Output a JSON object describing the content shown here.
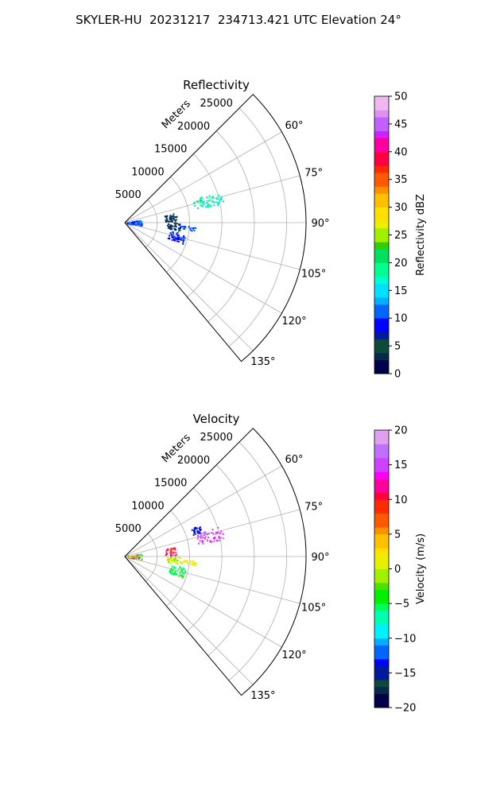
{
  "title": "SKYLER-HU  20231217  234713.421 UTC Elevation 24°",
  "colors": {
    "grid": "#b0b0b0",
    "axis": "#000000"
  },
  "chart_data": [
    {
      "type": "heatmap",
      "projection": "polar-sector",
      "title": "Reflectivity",
      "radial_label": "Meters",
      "radial_range": [
        0,
        28000
      ],
      "radial_ticks": [
        5000,
        10000,
        15000,
        20000,
        25000
      ],
      "theta_range_deg": [
        45,
        140
      ],
      "theta_ticks": [
        "60°",
        "75°",
        "90°",
        "105°",
        "120°",
        "135°"
      ],
      "theta_tick_values": [
        60,
        75,
        90,
        105,
        120,
        135
      ],
      "grid": true,
      "colorbar": {
        "label": "Reflectivity dBZ",
        "min": 0,
        "max": 50,
        "ticks": [
          "0",
          "5",
          "10",
          "15",
          "20",
          "25",
          "30",
          "35",
          "40",
          "45",
          "50"
        ],
        "colormap": "radar"
      },
      "echo_regions": [
        {
          "r_min": 11000,
          "r_max": 15500,
          "theta_min": 71,
          "theta_max": 79,
          "value_min": 14,
          "value_max": 22
        },
        {
          "r_min": 6200,
          "r_max": 8000,
          "theta_min": 79,
          "theta_max": 88,
          "value_min": 3,
          "value_max": 7
        },
        {
          "r_min": 6500,
          "r_max": 8500,
          "theta_min": 90,
          "theta_max": 98,
          "value_min": 3,
          "value_max": 8
        },
        {
          "r_min": 8500,
          "r_max": 11000,
          "theta_min": 93,
          "theta_max": 97,
          "value_min": 9,
          "value_max": 12
        },
        {
          "r_min": 7000,
          "r_max": 9500,
          "theta_min": 100,
          "theta_max": 110,
          "value_min": 8,
          "value_max": 11
        },
        {
          "r_min": 300,
          "r_max": 2600,
          "theta_min": 80,
          "theta_max": 100,
          "value_min": 8,
          "value_max": 13
        }
      ]
    },
    {
      "type": "heatmap",
      "projection": "polar-sector",
      "title": "Velocity",
      "radial_label": "Meters",
      "radial_range": [
        0,
        28000
      ],
      "radial_ticks": [
        5000,
        10000,
        15000,
        20000,
        25000
      ],
      "theta_range_deg": [
        45,
        140
      ],
      "theta_ticks": [
        "60°",
        "75°",
        "90°",
        "105°",
        "120°",
        "135°"
      ],
      "theta_tick_values": [
        60,
        75,
        90,
        105,
        120,
        135
      ],
      "grid": true,
      "colorbar": {
        "label": "Velocity (m/s)",
        "min": -20,
        "max": 20,
        "ticks": [
          "−20",
          "−15",
          "−10",
          "−5",
          "0",
          "5",
          "10",
          "15",
          "20"
        ],
        "colormap": "velocity"
      },
      "echo_regions": [
        {
          "r_min": 11500,
          "r_max": 15500,
          "theta_min": 72,
          "theta_max": 80,
          "value_min": 14,
          "value_max": 17
        },
        {
          "r_min": 11000,
          "r_max": 12500,
          "theta_min": 67,
          "theta_max": 72,
          "value_min": -16,
          "value_max": -13
        },
        {
          "r_min": 6200,
          "r_max": 8000,
          "theta_min": 79,
          "theta_max": 88,
          "value_min": 6,
          "value_max": 14
        },
        {
          "r_min": 6500,
          "r_max": 8500,
          "theta_min": 90,
          "theta_max": 98,
          "value_min": -2,
          "value_max": 1
        },
        {
          "r_min": 8500,
          "r_max": 11000,
          "theta_min": 93,
          "theta_max": 97,
          "value_min": 0,
          "value_max": 2
        },
        {
          "r_min": 7000,
          "r_max": 9500,
          "theta_min": 100,
          "theta_max": 110,
          "value_min": -8,
          "value_max": -3
        },
        {
          "r_min": 300,
          "r_max": 2600,
          "theta_min": 80,
          "theta_max": 100,
          "value_min": -12,
          "value_max": 15
        }
      ]
    }
  ]
}
